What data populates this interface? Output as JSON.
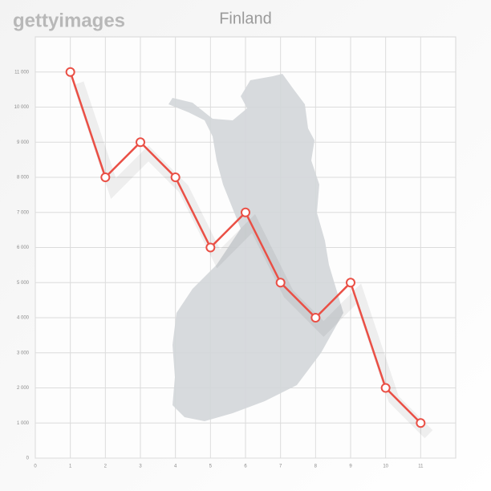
{
  "chart_data": {
    "type": "line",
    "title": "Finland",
    "watermark": "gettyimages",
    "x": [
      1,
      2,
      3,
      4,
      5,
      6,
      7,
      8,
      9,
      10,
      11
    ],
    "values": [
      11000,
      8000,
      9000,
      8000,
      6000,
      7000,
      5000,
      4000,
      5000,
      2000,
      1000
    ],
    "color": "#ea4f45",
    "xlim": [
      0,
      12
    ],
    "ylim": [
      0,
      12000
    ],
    "xticks": [
      0,
      1,
      2,
      3,
      4,
      5,
      6,
      7,
      8,
      9,
      10,
      11
    ],
    "yticks": [
      0,
      {
        "value": 1000,
        "label": "1 000"
      },
      {
        "value": 2000,
        "label": "2 000"
      },
      {
        "value": 3000,
        "label": "3 000"
      },
      {
        "value": 4000,
        "label": "4 000"
      },
      {
        "value": 5000,
        "label": "5 000"
      },
      {
        "value": 6000,
        "label": "6 000"
      },
      {
        "value": 7000,
        "label": "7 000"
      },
      {
        "value": 8000,
        "label": "8 000"
      },
      {
        "value": 9000,
        "label": "9 000"
      },
      {
        "value": 10000,
        "label": "10 000"
      },
      {
        "value": 11000,
        "label": "11 000"
      }
    ],
    "grid": true
  }
}
